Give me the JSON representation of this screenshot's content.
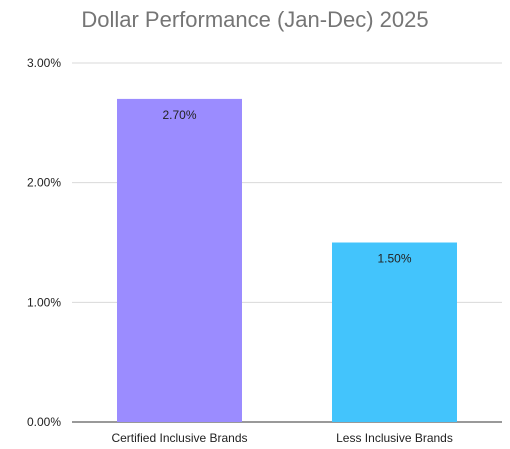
{
  "chart_data": {
    "type": "bar",
    "title": "Dollar Performance (Jan-Dec) 2025",
    "xlabel": "",
    "ylabel": "",
    "categories": [
      "Certified Inclusive Brands",
      "Less Inclusive Brands"
    ],
    "values": [
      2.7,
      1.5
    ],
    "data_labels": [
      "2.70%",
      "1.50%"
    ],
    "colors": [
      "#9b8cff",
      "#43c4fc"
    ],
    "ylim": [
      0,
      3
    ],
    "y_ticks": [
      0,
      1,
      2,
      3
    ],
    "y_tick_labels": [
      "0.00%",
      "1.00%",
      "2.00%",
      "3.00%"
    ],
    "grid": true,
    "legend": "none"
  }
}
